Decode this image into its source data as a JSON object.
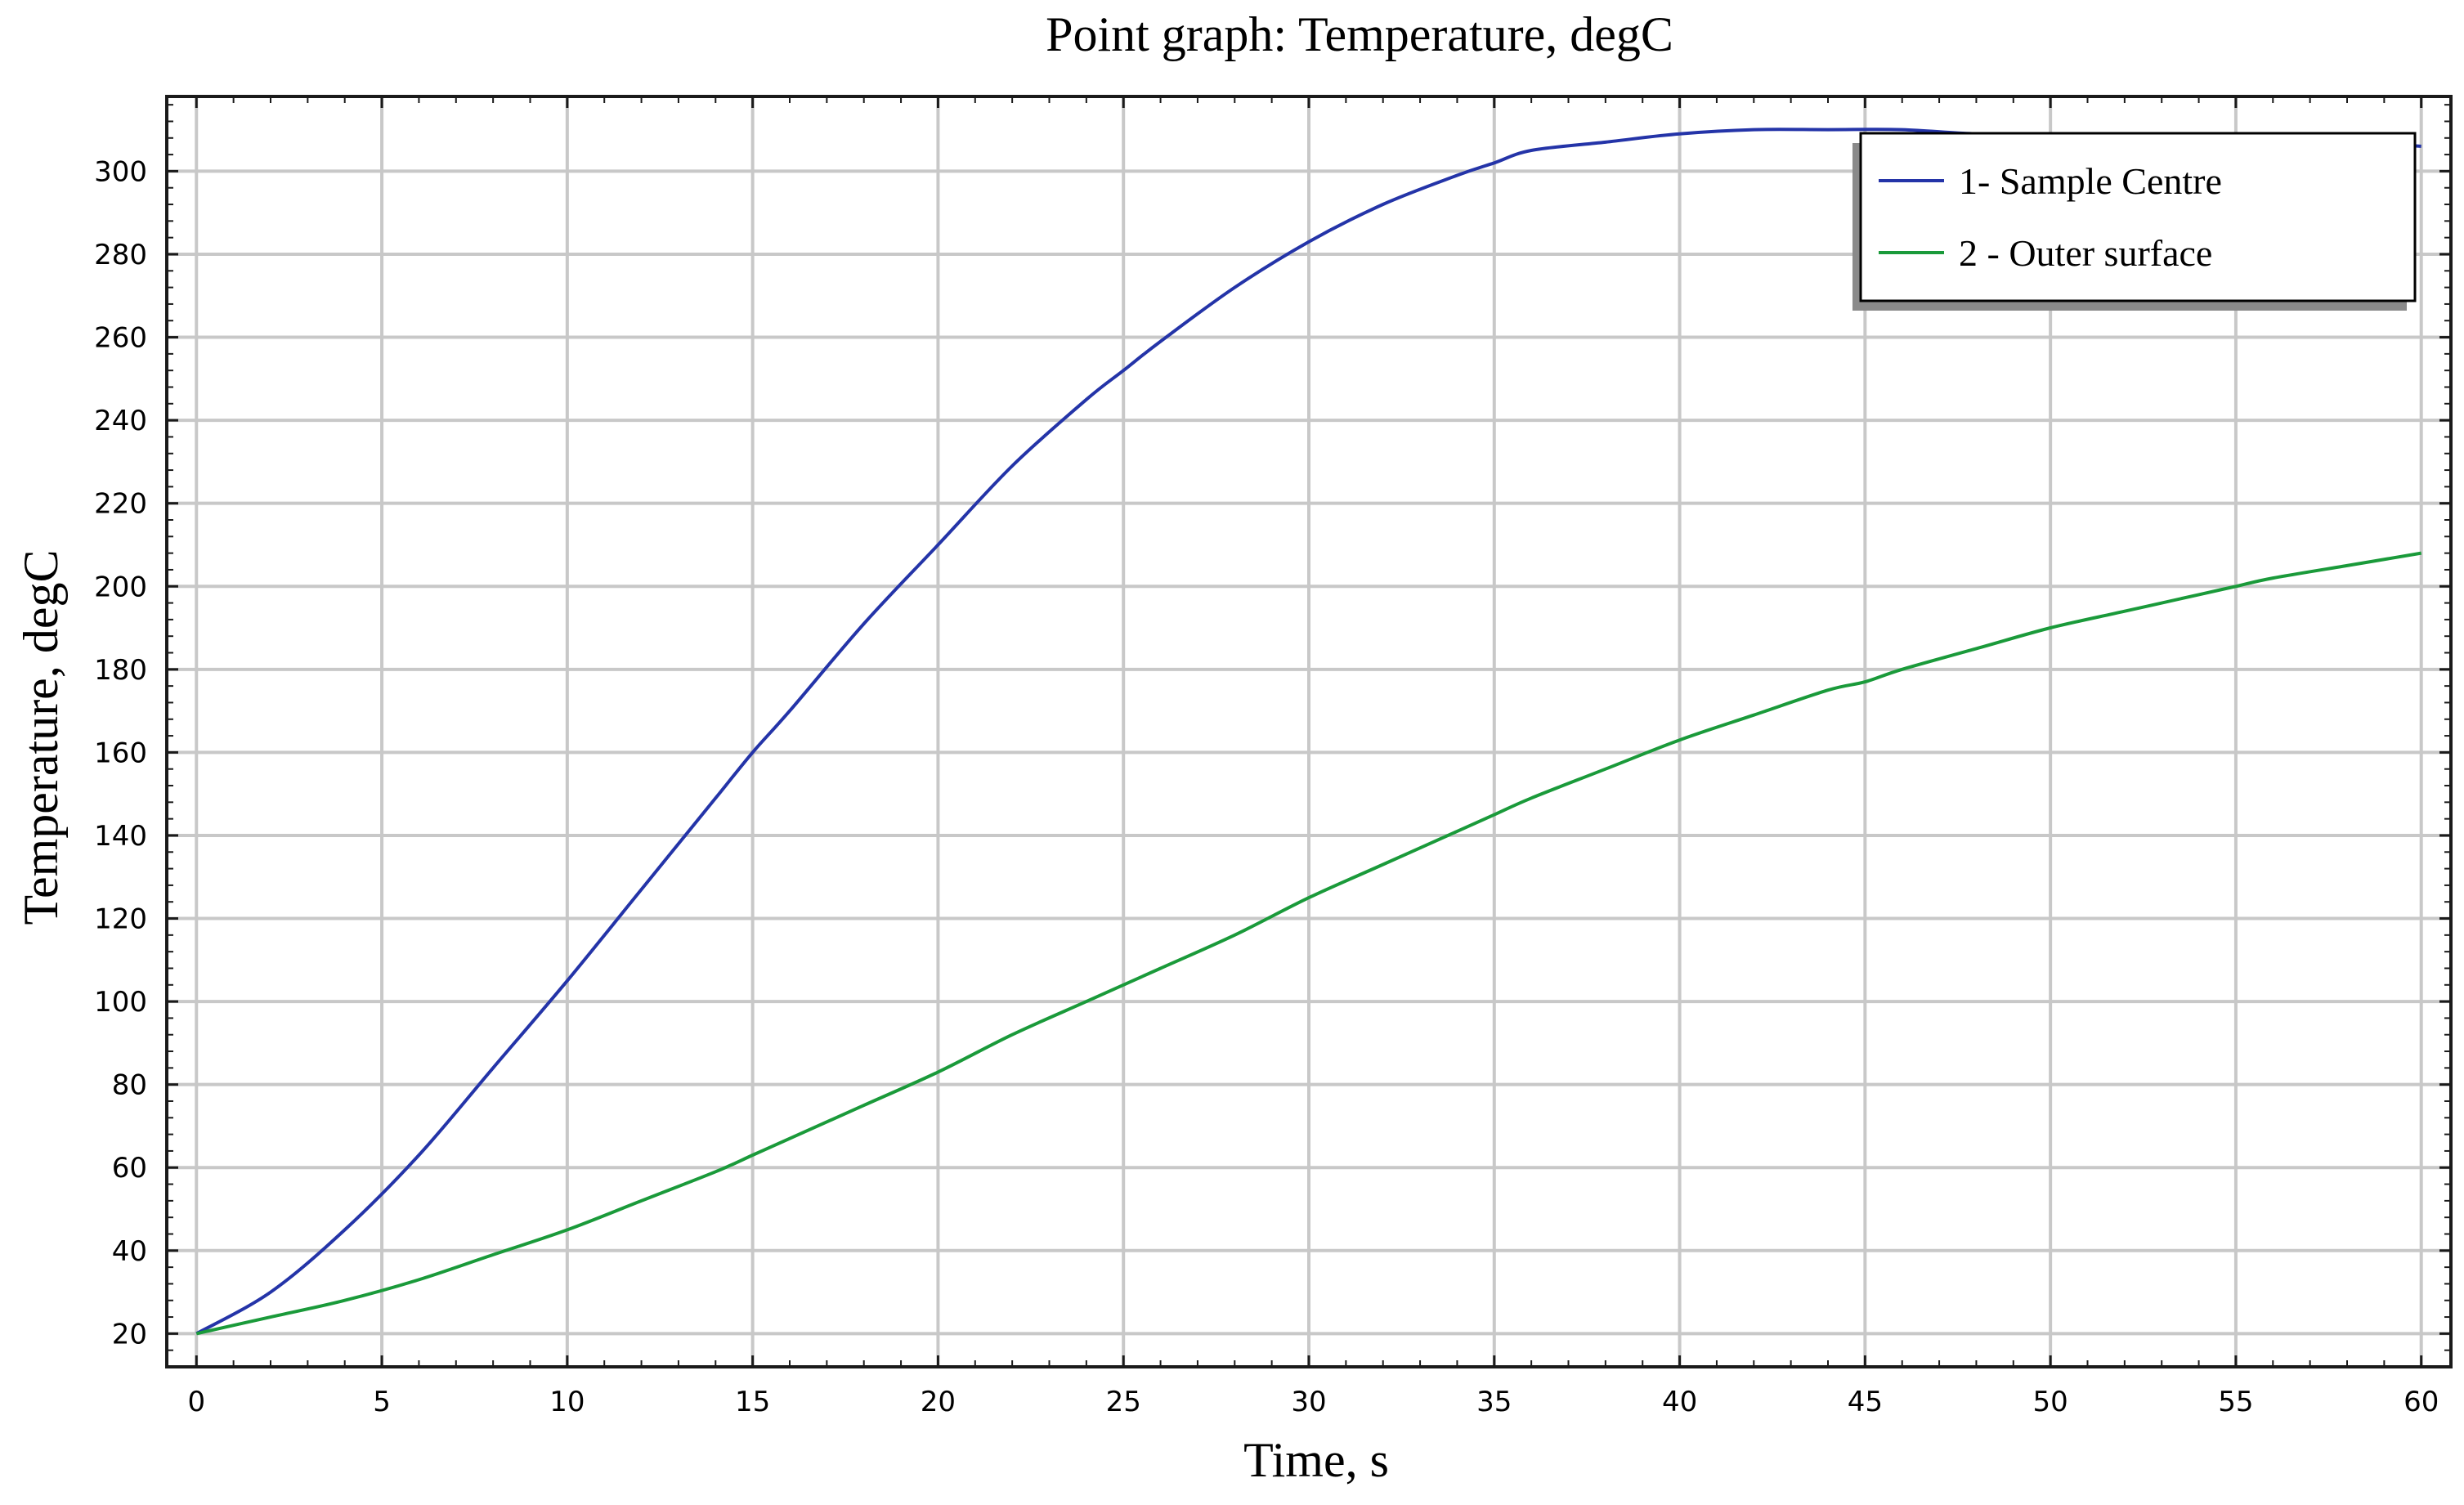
{
  "chart_data": {
    "type": "line",
    "title": "Point graph: Temperature, degC",
    "xlabel": "Time, s",
    "ylabel": "Temperature, degC",
    "xlim": [
      -0.8,
      60.8
    ],
    "ylim": [
      12,
      318
    ],
    "xticks": [
      0,
      5,
      10,
      15,
      20,
      25,
      30,
      35,
      40,
      45,
      50,
      55,
      60
    ],
    "yticks": [
      20,
      40,
      60,
      80,
      100,
      120,
      140,
      160,
      180,
      200,
      220,
      240,
      260,
      280,
      300
    ],
    "grid": true,
    "legend_position": "top-right",
    "series": [
      {
        "name": "1- Sample Centre",
        "color": "#2434a8",
        "x": [
          0,
          2,
          4,
          6,
          8,
          10,
          12,
          14,
          15,
          16,
          18,
          20,
          22,
          24,
          25,
          26,
          28,
          30,
          32,
          34,
          35,
          36,
          38,
          40,
          42,
          44,
          46,
          48,
          50,
          52,
          54,
          56,
          58,
          60
        ],
        "y": [
          20,
          30,
          45,
          63,
          84,
          105,
          127,
          149,
          160,
          170,
          191,
          210,
          229,
          245,
          252,
          259,
          272,
          283,
          292,
          299,
          302,
          305,
          307,
          309,
          310,
          310,
          310,
          309,
          309,
          308,
          308,
          307,
          307,
          306
        ]
      },
      {
        "name": "2 - Outer surface",
        "color": "#1a9a3a",
        "x": [
          0,
          2,
          4,
          6,
          8,
          10,
          12,
          14,
          15,
          16,
          18,
          20,
          22,
          24,
          25,
          26,
          28,
          30,
          32,
          34,
          35,
          36,
          38,
          40,
          42,
          44,
          45,
          46,
          48,
          50,
          52,
          54,
          55,
          56,
          58,
          60
        ],
        "y": [
          20,
          24,
          28,
          33,
          39,
          45,
          52,
          59,
          63,
          67,
          75,
          83,
          92,
          100,
          104,
          108,
          116,
          125,
          133,
          141,
          145,
          149,
          156,
          163,
          169,
          175,
          177,
          180,
          185,
          190,
          194,
          198,
          200,
          202,
          205,
          208
        ]
      }
    ]
  }
}
